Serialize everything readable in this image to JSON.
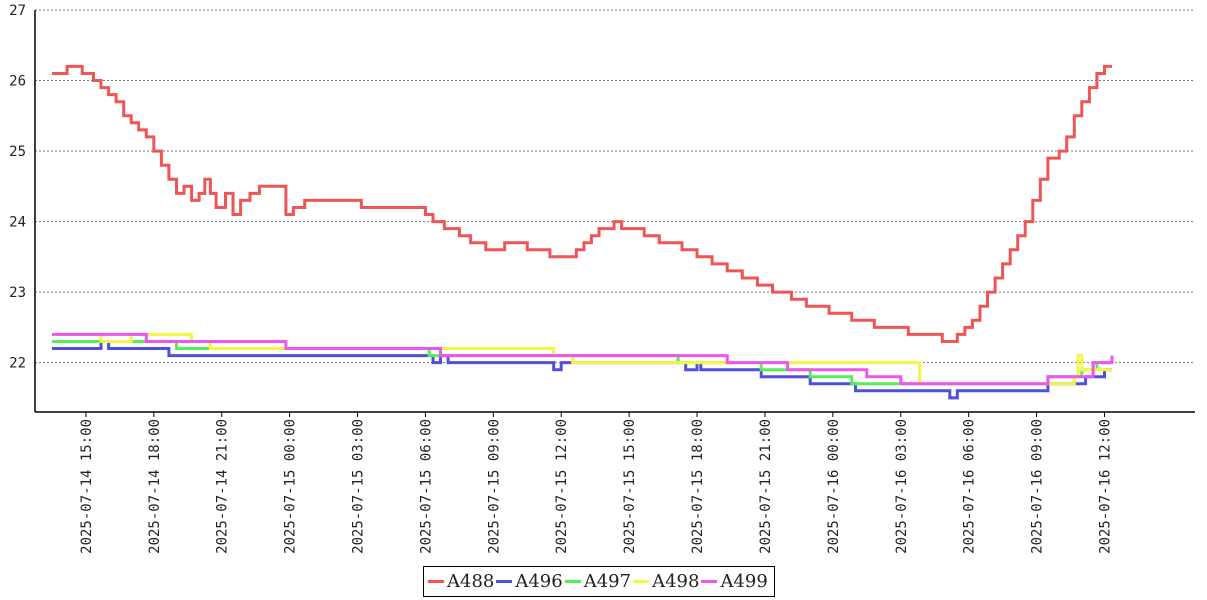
{
  "chart_data": {
    "type": "line",
    "step": true,
    "ylim": [
      21.3,
      27
    ],
    "yticks": [
      "22",
      "23",
      "24",
      "25",
      "26",
      "27"
    ],
    "xlim": [
      "2025-07-14 12:45",
      "2025-07-16 16:00"
    ],
    "xticks": [
      "2025-07-14 15:00",
      "2025-07-14 18:00",
      "2025-07-14 21:00",
      "2025-07-15 00:00",
      "2025-07-15 03:00",
      "2025-07-15 06:00",
      "2025-07-15 09:00",
      "2025-07-15 12:00",
      "2025-07-15 15:00",
      "2025-07-15 18:00",
      "2025-07-15 21:00",
      "2025-07-16 00:00",
      "2025-07-16 03:00",
      "2025-07-16 06:00",
      "2025-07-16 09:00",
      "2025-07-16 12:00"
    ],
    "grid": "horizontal dotted",
    "legend": "bottom-center",
    "series": [
      {
        "name": "A488",
        "color": "#ee5555",
        "points": [
          [
            "2025-07-14 13:30",
            26.1
          ],
          [
            "2025-07-14 14:10",
            26.2
          ],
          [
            "2025-07-14 14:50",
            26.1
          ],
          [
            "2025-07-14 15:20",
            26.0
          ],
          [
            "2025-07-14 15:40",
            25.9
          ],
          [
            "2025-07-14 16:00",
            25.8
          ],
          [
            "2025-07-14 16:20",
            25.7
          ],
          [
            "2025-07-14 16:40",
            25.5
          ],
          [
            "2025-07-14 17:00",
            25.4
          ],
          [
            "2025-07-14 17:20",
            25.3
          ],
          [
            "2025-07-14 17:40",
            25.2
          ],
          [
            "2025-07-14 18:00",
            25.0
          ],
          [
            "2025-07-14 18:20",
            24.8
          ],
          [
            "2025-07-14 18:40",
            24.6
          ],
          [
            "2025-07-14 19:00",
            24.4
          ],
          [
            "2025-07-14 19:20",
            24.5
          ],
          [
            "2025-07-14 19:40",
            24.3
          ],
          [
            "2025-07-14 20:00",
            24.4
          ],
          [
            "2025-07-14 20:15",
            24.6
          ],
          [
            "2025-07-14 20:30",
            24.4
          ],
          [
            "2025-07-14 20:45",
            24.2
          ],
          [
            "2025-07-14 21:10",
            24.4
          ],
          [
            "2025-07-14 21:30",
            24.1
          ],
          [
            "2025-07-14 21:50",
            24.3
          ],
          [
            "2025-07-14 22:15",
            24.4
          ],
          [
            "2025-07-14 22:40",
            24.5
          ],
          [
            "2025-07-14 23:50",
            24.1
          ],
          [
            "2025-07-15 00:10",
            24.2
          ],
          [
            "2025-07-15 00:40",
            24.3
          ],
          [
            "2025-07-15 03:10",
            24.2
          ],
          [
            "2025-07-15 06:00",
            24.1
          ],
          [
            "2025-07-15 06:20",
            24.0
          ],
          [
            "2025-07-15 06:50",
            23.9
          ],
          [
            "2025-07-15 07:30",
            23.8
          ],
          [
            "2025-07-15 08:00",
            23.7
          ],
          [
            "2025-07-15 08:40",
            23.6
          ],
          [
            "2025-07-15 09:30",
            23.7
          ],
          [
            "2025-07-15 10:30",
            23.6
          ],
          [
            "2025-07-15 11:30",
            23.5
          ],
          [
            "2025-07-15 12:40",
            23.6
          ],
          [
            "2025-07-15 13:00",
            23.7
          ],
          [
            "2025-07-15 13:20",
            23.8
          ],
          [
            "2025-07-15 13:40",
            23.9
          ],
          [
            "2025-07-15 14:20",
            24.0
          ],
          [
            "2025-07-15 14:40",
            23.9
          ],
          [
            "2025-07-15 15:40",
            23.8
          ],
          [
            "2025-07-15 16:20",
            23.7
          ],
          [
            "2025-07-15 17:20",
            23.6
          ],
          [
            "2025-07-15 18:00",
            23.5
          ],
          [
            "2025-07-15 18:40",
            23.4
          ],
          [
            "2025-07-15 19:20",
            23.3
          ],
          [
            "2025-07-15 20:00",
            23.2
          ],
          [
            "2025-07-15 20:40",
            23.1
          ],
          [
            "2025-07-15 21:20",
            23.0
          ],
          [
            "2025-07-15 22:10",
            22.9
          ],
          [
            "2025-07-15 22:50",
            22.8
          ],
          [
            "2025-07-15 23:50",
            22.7
          ],
          [
            "2025-07-16 00:50",
            22.6
          ],
          [
            "2025-07-16 01:50",
            22.5
          ],
          [
            "2025-07-16 03:20",
            22.4
          ],
          [
            "2025-07-16 04:50",
            22.3
          ],
          [
            "2025-07-16 05:30",
            22.4
          ],
          [
            "2025-07-16 05:50",
            22.5
          ],
          [
            "2025-07-16 06:10",
            22.6
          ],
          [
            "2025-07-16 06:30",
            22.8
          ],
          [
            "2025-07-16 06:50",
            23.0
          ],
          [
            "2025-07-16 07:10",
            23.2
          ],
          [
            "2025-07-16 07:30",
            23.4
          ],
          [
            "2025-07-16 07:50",
            23.6
          ],
          [
            "2025-07-16 08:10",
            23.8
          ],
          [
            "2025-07-16 08:30",
            24.0
          ],
          [
            "2025-07-16 08:50",
            24.3
          ],
          [
            "2025-07-16 09:10",
            24.6
          ],
          [
            "2025-07-16 09:30",
            24.9
          ],
          [
            "2025-07-16 10:00",
            25.0
          ],
          [
            "2025-07-16 10:20",
            25.2
          ],
          [
            "2025-07-16 10:40",
            25.5
          ],
          [
            "2025-07-16 11:00",
            25.7
          ],
          [
            "2025-07-16 11:20",
            25.9
          ],
          [
            "2025-07-16 11:40",
            26.1
          ],
          [
            "2025-07-16 12:00",
            26.2
          ],
          [
            "2025-07-16 12:20",
            26.2
          ]
        ]
      },
      {
        "name": "A496",
        "color": "#4f4fdd",
        "points": [
          [
            "2025-07-14 13:30",
            22.2
          ],
          [
            "2025-07-14 15:40",
            22.3
          ],
          [
            "2025-07-14 16:00",
            22.2
          ],
          [
            "2025-07-14 18:40",
            22.1
          ],
          [
            "2025-07-15 06:20",
            22.0
          ],
          [
            "2025-07-15 06:40",
            22.1
          ],
          [
            "2025-07-15 07:00",
            22.0
          ],
          [
            "2025-07-15 11:40",
            21.9
          ],
          [
            "2025-07-15 12:00",
            22.0
          ],
          [
            "2025-07-15 17:30",
            21.9
          ],
          [
            "2025-07-15 18:00",
            22.0
          ],
          [
            "2025-07-15 18:10",
            21.9
          ],
          [
            "2025-07-15 20:50",
            21.8
          ],
          [
            "2025-07-15 23:00",
            21.7
          ],
          [
            "2025-07-16 01:00",
            21.6
          ],
          [
            "2025-07-16 05:10",
            21.5
          ],
          [
            "2025-07-16 05:30",
            21.6
          ],
          [
            "2025-07-16 09:30",
            21.7
          ],
          [
            "2025-07-16 11:10",
            21.8
          ],
          [
            "2025-07-16 12:00",
            21.9
          ],
          [
            "2025-07-16 12:20",
            21.9
          ]
        ]
      },
      {
        "name": "A497",
        "color": "#55ee55",
        "points": [
          [
            "2025-07-14 13:30",
            22.3
          ],
          [
            "2025-07-14 19:00",
            22.2
          ],
          [
            "2025-07-14 19:30",
            22.2
          ],
          [
            "2025-07-15 00:30",
            22.2
          ],
          [
            "2025-07-15 06:10",
            22.1
          ],
          [
            "2025-07-15 11:40",
            22.1
          ],
          [
            "2025-07-15 17:10",
            22.0
          ],
          [
            "2025-07-15 20:50",
            21.9
          ],
          [
            "2025-07-15 23:00",
            21.8
          ],
          [
            "2025-07-16 00:50",
            21.7
          ],
          [
            "2025-07-16 04:00",
            21.7
          ],
          [
            "2025-07-16 06:00",
            21.7
          ],
          [
            "2025-07-16 09:30",
            21.8
          ],
          [
            "2025-07-16 11:00",
            21.9
          ],
          [
            "2025-07-16 11:40",
            22.0
          ],
          [
            "2025-07-16 12:20",
            22.0
          ]
        ]
      },
      {
        "name": "A498",
        "color": "#f5f545",
        "points": [
          [
            "2025-07-14 13:40",
            22.4
          ],
          [
            "2025-07-14 15:40",
            22.3
          ],
          [
            "2025-07-14 17:00",
            22.4
          ],
          [
            "2025-07-14 19:40",
            22.3
          ],
          [
            "2025-07-14 20:30",
            22.2
          ],
          [
            "2025-07-15 01:20",
            22.2
          ],
          [
            "2025-07-15 06:00",
            22.2
          ],
          [
            "2025-07-15 11:40",
            22.1
          ],
          [
            "2025-07-15 12:30",
            22.0
          ],
          [
            "2025-07-15 17:30",
            22.0
          ],
          [
            "2025-07-16 03:50",
            21.7
          ],
          [
            "2025-07-16 10:40",
            21.8
          ],
          [
            "2025-07-16 10:50",
            22.1
          ],
          [
            "2025-07-16 11:00",
            21.9
          ],
          [
            "2025-07-16 12:20",
            21.9
          ]
        ]
      },
      {
        "name": "A499",
        "color": "#ee55ee",
        "points": [
          [
            "2025-07-14 13:30",
            22.4
          ],
          [
            "2025-07-14 17:40",
            22.3
          ],
          [
            "2025-07-14 19:50",
            22.3
          ],
          [
            "2025-07-14 22:40",
            22.3
          ],
          [
            "2025-07-14 23:50",
            22.2
          ],
          [
            "2025-07-15 06:00",
            22.2
          ],
          [
            "2025-07-15 06:40",
            22.1
          ],
          [
            "2025-07-15 17:20",
            22.1
          ],
          [
            "2025-07-15 19:20",
            22.0
          ],
          [
            "2025-07-15 22:00",
            21.9
          ],
          [
            "2025-07-16 01:30",
            21.8
          ],
          [
            "2025-07-16 03:00",
            21.7
          ],
          [
            "2025-07-16 04:30",
            21.7
          ],
          [
            "2025-07-16 09:30",
            21.8
          ],
          [
            "2025-07-16 11:30",
            22.0
          ],
          [
            "2025-07-16 12:20",
            22.1
          ]
        ]
      }
    ]
  }
}
